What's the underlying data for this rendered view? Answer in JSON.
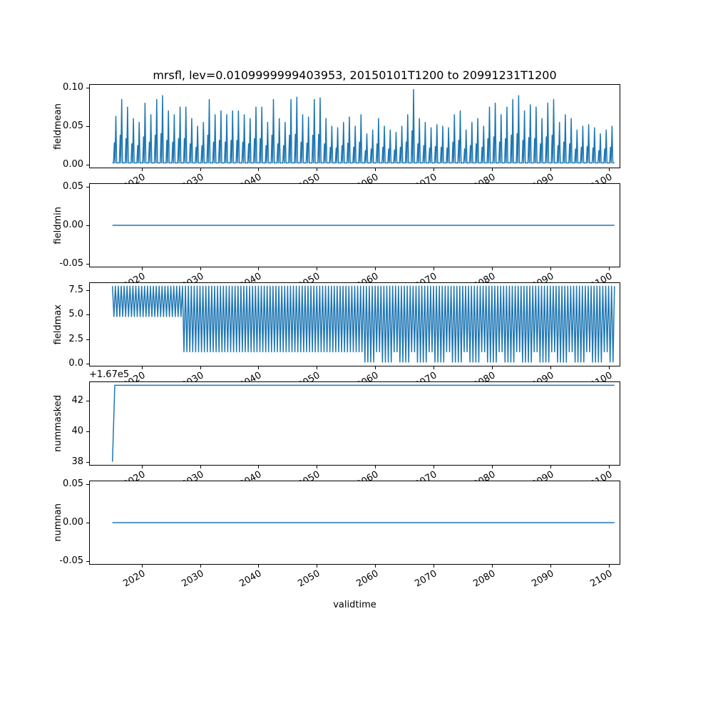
{
  "chart_data": {
    "type": "line",
    "title": "mrsfl, lev=0.0109999999403953, 20150101T1200 to 20991231T1200",
    "xlabel": "validtime",
    "line_color": "#1f77b4",
    "background": "#ffffff",
    "grid": false,
    "legend": "none",
    "xlim": [
      2011,
      2102
    ],
    "xticks": [
      2020,
      2030,
      2040,
      2050,
      2060,
      2070,
      2080,
      2090,
      2100
    ],
    "xtick_labels": [
      "2020",
      "2030",
      "2040",
      "2050",
      "2060",
      "2070",
      "2080",
      "2090",
      "2100"
    ],
    "subplots": [
      {
        "name": "fieldmean",
        "ylabel": "fieldmean",
        "kind": "spikes",
        "ylim": [
          -0.005,
          0.105
        ],
        "yticks": [
          0.0,
          0.05,
          0.1
        ],
        "ytick_labels": [
          "0.00",
          "0.05",
          "0.10"
        ],
        "x_start": 2015,
        "x_end": 2101,
        "baseline": 0.002,
        "annual_peaks": [
          0.063,
          0.085,
          0.075,
          0.06,
          0.055,
          0.08,
          0.065,
          0.085,
          0.09,
          0.07,
          0.065,
          0.075,
          0.075,
          0.06,
          0.05,
          0.055,
          0.085,
          0.065,
          0.07,
          0.065,
          0.07,
          0.07,
          0.065,
          0.06,
          0.075,
          0.075,
          0.055,
          0.085,
          0.06,
          0.055,
          0.085,
          0.088,
          0.065,
          0.062,
          0.085,
          0.087,
          0.06,
          0.05,
          0.048,
          0.055,
          0.062,
          0.05,
          0.065,
          0.04,
          0.045,
          0.06,
          0.05,
          0.045,
          0.042,
          0.05,
          0.065,
          0.098,
          0.06,
          0.055,
          0.048,
          0.052,
          0.05,
          0.048,
          0.065,
          0.07,
          0.045,
          0.055,
          0.06,
          0.05,
          0.075,
          0.08,
          0.065,
          0.075,
          0.085,
          0.09,
          0.07,
          0.078,
          0.075,
          0.06,
          0.08,
          0.085,
          0.055,
          0.065,
          0.06,
          0.045,
          0.05,
          0.052,
          0.048,
          0.04,
          0.045,
          0.05
        ]
      },
      {
        "name": "fieldmin",
        "ylabel": "fieldmin",
        "kind": "flat",
        "value": 0.0,
        "ylim": [
          -0.055,
          0.055
        ],
        "yticks": [
          -0.05,
          0.0,
          0.05
        ],
        "ytick_labels": [
          "-0.05",
          "0.00",
          "0.05"
        ],
        "x_start": 2015,
        "x_end": 2101
      },
      {
        "name": "fieldmax",
        "ylabel": "fieldmax",
        "kind": "oscillation",
        "ylim": [
          -0.29,
          8.29
        ],
        "yticks": [
          0.0,
          2.5,
          5.0,
          7.5
        ],
        "ytick_labels": [
          "0.0",
          "2.5",
          "5.0",
          "7.5"
        ],
        "x_start": 2015,
        "x_end": 2101,
        "annual_max": 7.9,
        "cycles_per_year": 2,
        "annual_mins": [
          4.8,
          4.8,
          4.8,
          4.8,
          4.8,
          4.8,
          4.8,
          4.8,
          4.8,
          4.8,
          4.8,
          4.8,
          1.2,
          1.2,
          1.2,
          1.2,
          1.2,
          1.2,
          1.2,
          1.2,
          1.2,
          1.2,
          1.2,
          1.2,
          1.2,
          1.2,
          1.2,
          1.2,
          1.2,
          1.2,
          1.2,
          1.2,
          1.2,
          1.2,
          1.2,
          1.2,
          1.2,
          1.2,
          1.2,
          1.2,
          1.2,
          1.2,
          1.2,
          0.15,
          0.15,
          1.2,
          0.15,
          0.15,
          1.2,
          0.15,
          0.15,
          1.2,
          0.15,
          0.15,
          1.2,
          0.15,
          0.15,
          1.2,
          0.15,
          0.15,
          1.2,
          0.15,
          0.15,
          1.2,
          0.15,
          0.15,
          1.2,
          0.15,
          0.15,
          1.2,
          0.15,
          0.15,
          1.2,
          0.15,
          0.15,
          1.2,
          0.15,
          0.15,
          1.2,
          0.15,
          0.15,
          1.2,
          0.15,
          0.15,
          1.2,
          0.15
        ]
      },
      {
        "name": "nummasked",
        "ylabel": "nummasked",
        "kind": "step",
        "offset_text": "+1.67e5",
        "ylim": [
          167037.75,
          167043.25
        ],
        "yticks": [
          167038,
          167040,
          167042
        ],
        "ytick_labels": [
          "38",
          "40",
          "42"
        ],
        "x_start": 2015,
        "x_end": 2101,
        "points": [
          [
            2015.0,
            167038
          ],
          [
            2015.4,
            167043
          ],
          [
            2101,
            167043
          ]
        ]
      },
      {
        "name": "numnan",
        "ylabel": "numnan",
        "kind": "flat",
        "value": 0.0,
        "ylim": [
          -0.055,
          0.055
        ],
        "yticks": [
          -0.05,
          0.0,
          0.05
        ],
        "ytick_labels": [
          "-0.05",
          "0.00",
          "0.05"
        ],
        "x_start": 2015,
        "x_end": 2101
      }
    ]
  }
}
